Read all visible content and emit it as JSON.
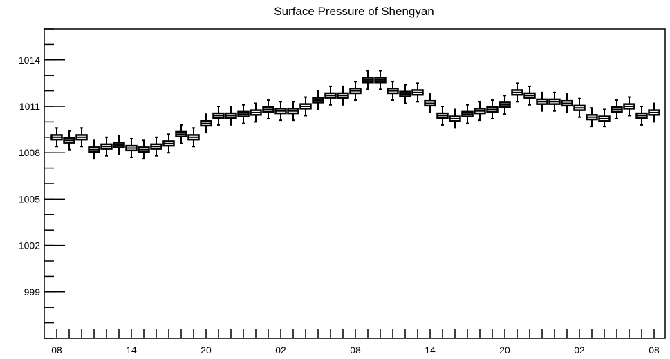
{
  "chart_data": {
    "type": "box",
    "title": "Surface Pressure of Shengyan",
    "xlabel": "",
    "ylabel": "",
    "ylim": [
      996,
      1016
    ],
    "y_ticks": [
      999,
      1002,
      1005,
      1008,
      1011,
      1014
    ],
    "y_tick_labels": [
      "999",
      "1002",
      "1005",
      "1008",
      "1011",
      "1014"
    ],
    "x_tick_labels": [
      {
        "index": 0,
        "label": "08"
      },
      {
        "index": 6,
        "label": "14"
      },
      {
        "index": 12,
        "label": "20"
      },
      {
        "index": 18,
        "label": "02"
      },
      {
        "index": 24,
        "label": "08"
      },
      {
        "index": 30,
        "label": "14"
      },
      {
        "index": 36,
        "label": "20"
      },
      {
        "index": 42,
        "label": "02"
      },
      {
        "index": 48,
        "label": "08"
      }
    ],
    "grid": false,
    "box_color": "#000000",
    "series": [
      {
        "medians": [
          1009.0,
          1008.8,
          1009.0,
          1008.2,
          1008.4,
          1008.5,
          1008.3,
          1008.2,
          1008.4,
          1008.6,
          1009.2,
          1009.0,
          1009.9,
          1010.4,
          1010.4,
          1010.5,
          1010.6,
          1010.8,
          1010.7,
          1010.7,
          1011.0,
          1011.4,
          1011.7,
          1011.7,
          1012.0,
          1012.7,
          1012.7,
          1012.0,
          1011.8,
          1011.9,
          1011.2,
          1010.4,
          1010.2,
          1010.5,
          1010.7,
          1010.8,
          1011.1,
          1011.9,
          1011.7,
          1011.3,
          1011.3,
          1011.2,
          1010.9,
          1010.3,
          1010.2,
          1010.8,
          1011.0,
          1010.4,
          1010.6
        ],
        "q1": [
          1008.85,
          1008.65,
          1008.85,
          1008.05,
          1008.25,
          1008.35,
          1008.15,
          1008.05,
          1008.25,
          1008.45,
          1009.05,
          1008.85,
          1009.75,
          1010.25,
          1010.25,
          1010.35,
          1010.45,
          1010.65,
          1010.55,
          1010.55,
          1010.85,
          1011.25,
          1011.55,
          1011.55,
          1011.85,
          1012.55,
          1012.55,
          1011.85,
          1011.65,
          1011.75,
          1011.05,
          1010.25,
          1010.05,
          1010.35,
          1010.55,
          1010.65,
          1010.95,
          1011.75,
          1011.55,
          1011.15,
          1011.15,
          1011.05,
          1010.75,
          1010.15,
          1010.05,
          1010.65,
          1010.85,
          1010.25,
          1010.45
        ],
        "q3": [
          1009.15,
          1008.95,
          1009.15,
          1008.35,
          1008.55,
          1008.65,
          1008.45,
          1008.35,
          1008.55,
          1008.75,
          1009.35,
          1009.15,
          1010.05,
          1010.55,
          1010.55,
          1010.65,
          1010.75,
          1010.95,
          1010.85,
          1010.85,
          1011.15,
          1011.55,
          1011.85,
          1011.85,
          1012.15,
          1012.85,
          1012.85,
          1012.15,
          1011.95,
          1012.05,
          1011.35,
          1010.55,
          1010.35,
          1010.65,
          1010.85,
          1010.95,
          1011.25,
          1012.05,
          1011.85,
          1011.45,
          1011.45,
          1011.35,
          1011.05,
          1010.45,
          1010.35,
          1010.95,
          1011.15,
          1010.55,
          1010.75
        ],
        "whisker_low": [
          1008.4,
          1008.2,
          1008.4,
          1007.6,
          1007.8,
          1007.9,
          1007.7,
          1007.6,
          1007.8,
          1008.0,
          1008.6,
          1008.4,
          1009.3,
          1009.8,
          1009.8,
          1009.9,
          1010.0,
          1010.2,
          1010.1,
          1010.1,
          1010.4,
          1010.8,
          1011.1,
          1011.1,
          1011.4,
          1012.1,
          1012.1,
          1011.4,
          1011.2,
          1011.3,
          1010.6,
          1009.8,
          1009.6,
          1009.9,
          1010.1,
          1010.2,
          1010.5,
          1011.3,
          1011.1,
          1010.7,
          1010.7,
          1010.6,
          1010.3,
          1009.7,
          1009.7,
          1010.2,
          1010.4,
          1009.8,
          1010.0
        ],
        "whisker_high": [
          1009.6,
          1009.4,
          1009.6,
          1008.8,
          1009.0,
          1009.1,
          1008.9,
          1008.8,
          1009.0,
          1009.2,
          1009.8,
          1009.6,
          1010.5,
          1011.0,
          1011.0,
          1011.1,
          1011.2,
          1011.4,
          1011.3,
          1011.3,
          1011.6,
          1012.0,
          1012.3,
          1012.3,
          1012.6,
          1013.3,
          1013.3,
          1012.6,
          1012.4,
          1012.5,
          1011.8,
          1011.0,
          1010.8,
          1011.1,
          1011.3,
          1011.4,
          1011.7,
          1012.5,
          1012.3,
          1011.9,
          1011.9,
          1011.8,
          1011.5,
          1010.9,
          1010.8,
          1011.4,
          1011.6,
          1011.0,
          1011.2
        ]
      }
    ]
  }
}
